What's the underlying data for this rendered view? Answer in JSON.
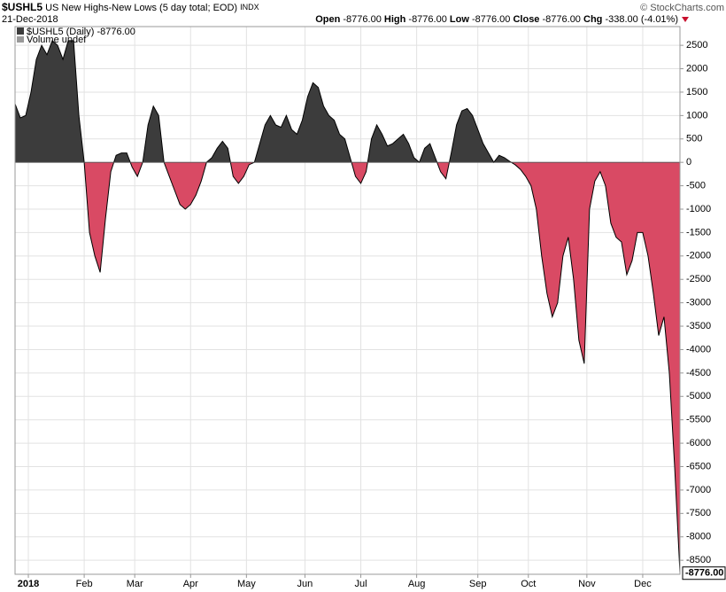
{
  "header": {
    "symbol": "$USHL5",
    "description": "US New Highs-New Lows (5 day total; EOD)",
    "exchange": "INDX",
    "date": "21-Dec-2018",
    "open_label": "Open",
    "open": "-8776.00",
    "high_label": "High",
    "high": "-8776.00",
    "low_label": "Low",
    "low": "-8776.00",
    "close_label": "Close",
    "close": "-8776.00",
    "chg_label": "Chg",
    "chg": "-338.00 (-4.01%)",
    "copyright": "© StockCharts.com"
  },
  "chart_data": {
    "type": "area",
    "legend": {
      "series_label": "$USHL5 (Daily) -8776.00",
      "volume_label": "Volume undef"
    },
    "last_label": "-8776.00",
    "positive_color": "#3c3c3c",
    "negative_color": "#d94a64",
    "grid": true,
    "values": [
      1250,
      950,
      1000,
      1500,
      2200,
      2500,
      2300,
      2600,
      2500,
      2200,
      2600,
      2600,
      1000,
      0,
      -1500,
      -2000,
      -2350,
      -1200,
      -200,
      150,
      200,
      200,
      -100,
      -300,
      0,
      800,
      1200,
      1000,
      0,
      -300,
      -600,
      -900,
      -1000,
      -900,
      -700,
      -400,
      0,
      100,
      300,
      450,
      300,
      -300,
      -450,
      -300,
      -50,
      0,
      400,
      800,
      1000,
      800,
      750,
      1000,
      700,
      600,
      900,
      1400,
      1700,
      1600,
      1200,
      1000,
      900,
      600,
      500,
      100,
      -300,
      -450,
      -200,
      500,
      800,
      600,
      350,
      400,
      500,
      600,
      400,
      100,
      0,
      300,
      400,
      100,
      -200,
      -350,
      200,
      800,
      1100,
      1150,
      1000,
      700,
      400,
      200,
      0,
      150,
      100,
      20,
      -50,
      -150,
      -300,
      -500,
      -1000,
      -2000,
      -2800,
      -3300,
      -3000,
      -2000,
      -1600,
      -2500,
      -3800,
      -4300,
      -1000,
      -400,
      -200,
      -500,
      -1300,
      -1600,
      -1700,
      -2400,
      -2100,
      -1500,
      -1500,
      -2000,
      -2800,
      -3700,
      -3300,
      -4500,
      -6500,
      -8776
    ],
    "xlim": [
      0,
      125
    ],
    "xticks": [
      {
        "value": 2.5,
        "label": "2018"
      },
      {
        "value": 13,
        "label": "Feb"
      },
      {
        "value": 22.5,
        "label": "Mar"
      },
      {
        "value": 33,
        "label": "Apr"
      },
      {
        "value": 43.5,
        "label": "May"
      },
      {
        "value": 54.5,
        "label": "Jun"
      },
      {
        "value": 65,
        "label": "Jul"
      },
      {
        "value": 75.5,
        "label": "Aug"
      },
      {
        "value": 87,
        "label": "Sep"
      },
      {
        "value": 96.5,
        "label": "Oct"
      },
      {
        "value": 107.5,
        "label": "Nov"
      },
      {
        "value": 118,
        "label": "Dec"
      }
    ],
    "ylim": [
      -8800,
      2900
    ],
    "yticks": [
      2500,
      2000,
      1500,
      1000,
      500,
      0,
      -500,
      -1000,
      -1500,
      -2000,
      -2500,
      -3000,
      -3500,
      -4000,
      -4500,
      -5000,
      -5500,
      -6000,
      -6500,
      -7000,
      -7500,
      -8000,
      -8500
    ]
  }
}
